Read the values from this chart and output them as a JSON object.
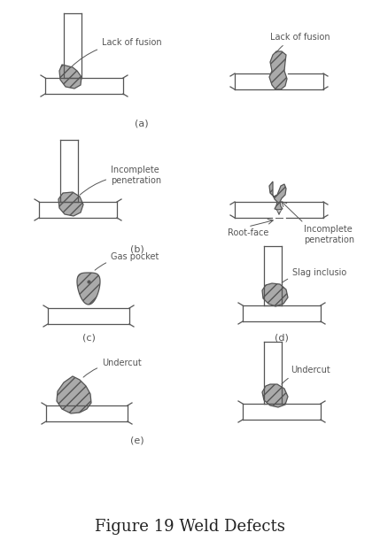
{
  "title": "Figure 19 Weld Defects",
  "title_fontsize": 13,
  "background_color": "#ffffff",
  "defect_color": "#aaaaaa",
  "line_color": "#555555",
  "label_fontsize": 7,
  "sub_label_fontsize": 8,
  "fig_width": 4.29,
  "fig_height": 6.19,
  "dpi": 100,
  "labels": {
    "a_left": "Lack of fusion",
    "a_right": "Lack of fusion",
    "b_left": "Incomplete\npenetration",
    "b_right_1": "Root-face",
    "b_right_2": "Incomplete\npenetration",
    "c": "Gas pocket",
    "d": "Slag inclusio",
    "e_left": "Undercut",
    "e_right": "Undercut"
  },
  "sub_labels": [
    "(a)",
    "(b)",
    "(c)",
    "(d)",
    "(e)"
  ]
}
